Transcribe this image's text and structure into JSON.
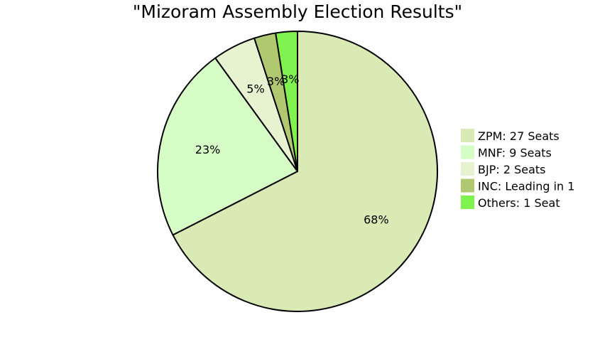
{
  "chart_data": {
    "type": "pie",
    "title": "\"Mizoram Assembly Election Results\"",
    "start_angle_deg": 90,
    "direction": "clockwise",
    "legend_position": "right",
    "slices": [
      {
        "label": "ZPM: 27 Seats",
        "value": 67.5,
        "percent_label": "68%",
        "color": "#d9eab5"
      },
      {
        "label": "MNF: 9 Seats",
        "value": 22.5,
        "percent_label": "23%",
        "color": "#d6fdc6"
      },
      {
        "label": "BJP: 2 Seats",
        "value": 5.0,
        "percent_label": "5%",
        "color": "#e6f2d0"
      },
      {
        "label": "INC: Leading in 1",
        "value": 2.5,
        "percent_label": "3%",
        "color": "#b0c870"
      },
      {
        "label": "Others: 1 Seat",
        "value": 2.5,
        "percent_label": "3%",
        "color": "#80f250"
      }
    ]
  }
}
